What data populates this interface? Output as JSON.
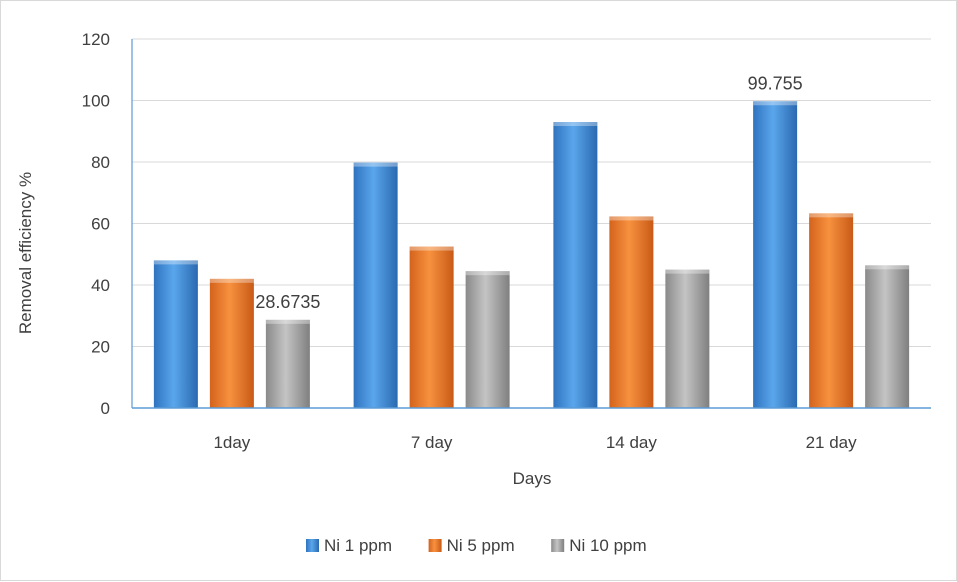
{
  "chart_data": {
    "type": "bar",
    "title": "",
    "xlabel": "Days",
    "ylabel": "Removal efficiency %",
    "categories": [
      "1day",
      "7 day",
      "14 day",
      "21 day"
    ],
    "ylim": [
      0,
      120
    ],
    "yticks": [
      0,
      20,
      40,
      60,
      80,
      100,
      120
    ],
    "grid": true,
    "legend_position": "bottom",
    "series": [
      {
        "name": "Ni 1 ppm",
        "color": "#4a90d9",
        "values": [
          48.0,
          79.8,
          93.0,
          99.755
        ]
      },
      {
        "name": "Ni 5 ppm",
        "color": "#ed7d31",
        "values": [
          42.0,
          52.5,
          62.3,
          63.3
        ]
      },
      {
        "name": "Ni 10 ppm",
        "color": "#a5a5a5",
        "values": [
          28.6735,
          44.5,
          45.0,
          46.4
        ]
      }
    ],
    "data_labels": [
      {
        "series": 2,
        "index": 0,
        "text": "28.6735"
      },
      {
        "series": 0,
        "index": 3,
        "text": "99.755"
      }
    ]
  }
}
